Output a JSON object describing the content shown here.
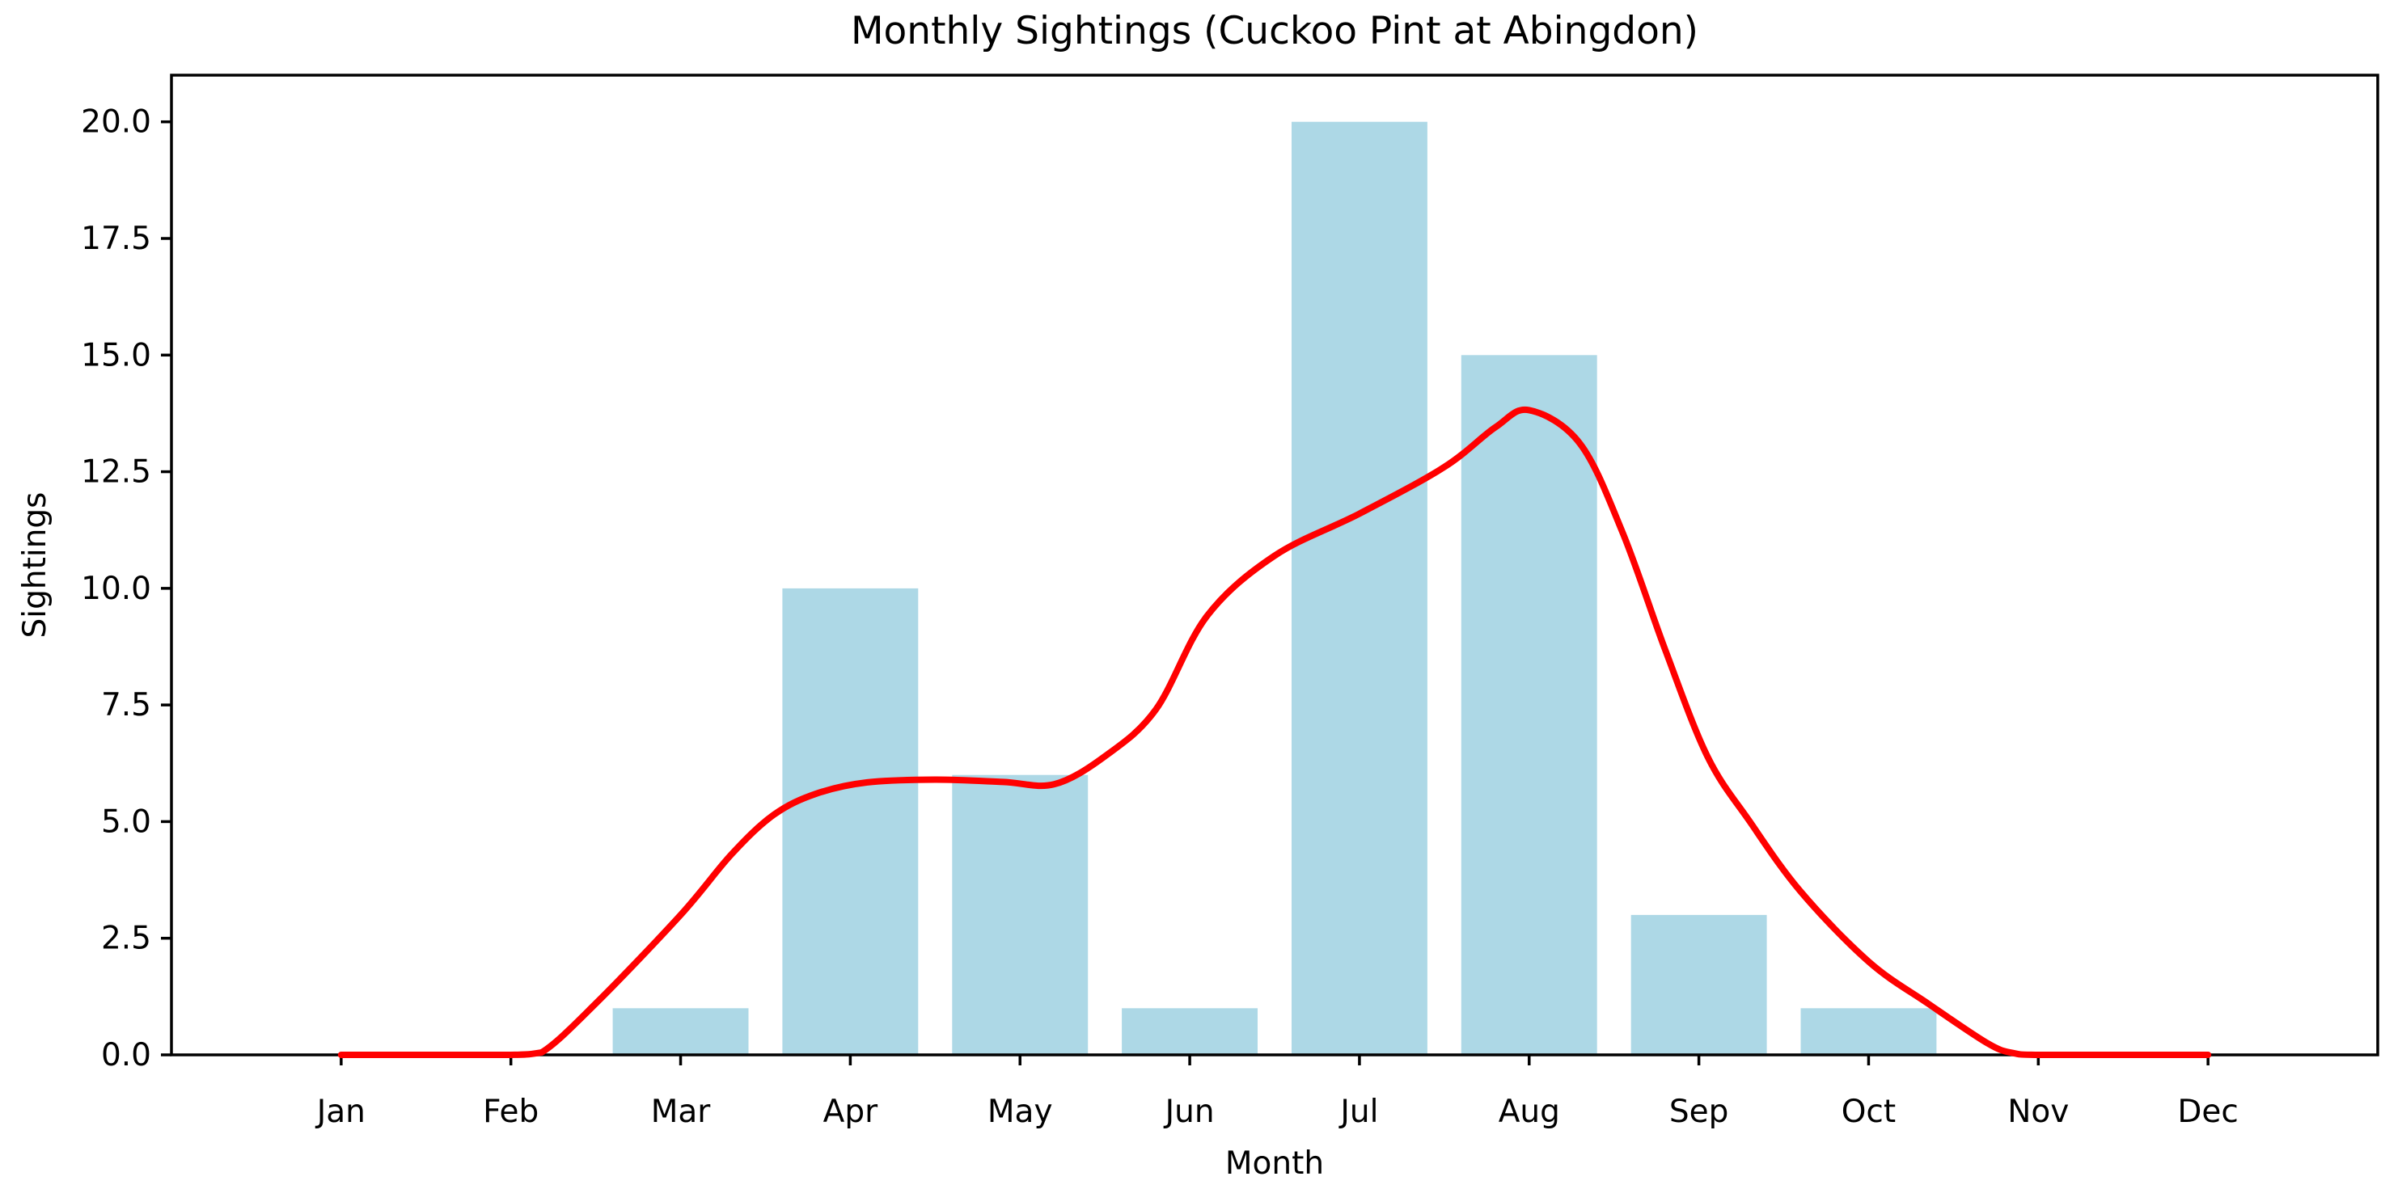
{
  "figure": {
    "background_color": "#FFFFFF"
  },
  "chart_data": {
    "type": "bar",
    "title": "Monthly Sightings (Cuckoo Pint at Abingdon)",
    "xlabel": "Month",
    "ylabel": "Sightings",
    "categories": [
      "Jan",
      "Feb",
      "Mar",
      "Apr",
      "May",
      "Jun",
      "Jul",
      "Aug",
      "Sep",
      "Oct",
      "Nov",
      "Dec"
    ],
    "series": [
      {
        "name": "monthly-sightings-bars",
        "type": "bar",
        "values": [
          0,
          0,
          1,
          10,
          6,
          1,
          20,
          15,
          3,
          1,
          0,
          0
        ],
        "color": "#ADD8E6"
      },
      {
        "name": "smoothed-trend-line",
        "type": "line",
        "color": "#FF0000",
        "points": [
          [
            0.0,
            0.0
          ],
          [
            0.6,
            0.0
          ],
          [
            1.0,
            0.0
          ],
          [
            1.18,
            0.05
          ],
          [
            1.5,
            1.1
          ],
          [
            2.0,
            3.0
          ],
          [
            2.3,
            4.3
          ],
          [
            2.55,
            5.15
          ],
          [
            2.8,
            5.6
          ],
          [
            3.1,
            5.84
          ],
          [
            3.5,
            5.9
          ],
          [
            3.9,
            5.85
          ],
          [
            4.2,
            5.8
          ],
          [
            4.5,
            6.4
          ],
          [
            4.8,
            7.4
          ],
          [
            5.1,
            9.4
          ],
          [
            5.5,
            10.7
          ],
          [
            6.0,
            11.6
          ],
          [
            6.5,
            12.6
          ],
          [
            6.8,
            13.45
          ],
          [
            7.0,
            13.82
          ],
          [
            7.3,
            13.1
          ],
          [
            7.55,
            11.2
          ],
          [
            7.8,
            8.7
          ],
          [
            8.05,
            6.4
          ],
          [
            8.3,
            5.0
          ],
          [
            8.6,
            3.5
          ],
          [
            9.0,
            2.0
          ],
          [
            9.35,
            1.1
          ],
          [
            9.7,
            0.25
          ],
          [
            9.85,
            0.04
          ],
          [
            10.0,
            0.0
          ],
          [
            10.5,
            0.0
          ],
          [
            11.0,
            0.0
          ]
        ]
      }
    ],
    "yticks": {
      "values": [
        0,
        2.5,
        5,
        7.5,
        10,
        12.5,
        15,
        17.5,
        20
      ],
      "labels": [
        "0.0",
        "2.5",
        "5.0",
        "7.5",
        "10.0",
        "12.5",
        "15.0",
        "17.5",
        "20.0"
      ]
    },
    "xlim": [
      -1,
      12
    ],
    "ylim": [
      0,
      21
    ],
    "bar_width_fraction": 0.8,
    "grid": false,
    "legend": "none",
    "axis_color": "#000000"
  }
}
